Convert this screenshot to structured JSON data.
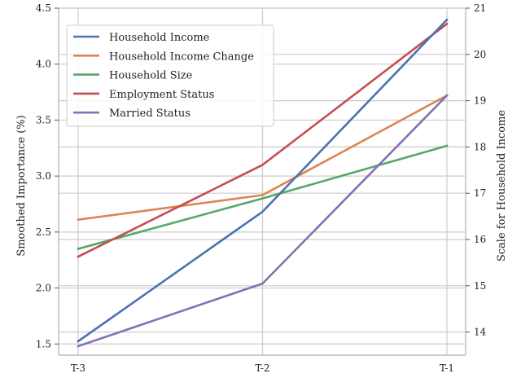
{
  "chart_data": {
    "type": "line",
    "categories": [
      "T-3",
      "T-2",
      "T-1"
    ],
    "series": [
      {
        "name": "Household Income Change",
        "axis": "left",
        "color": "#dd8452",
        "values": [
          2.61,
          2.83,
          3.72
        ]
      },
      {
        "name": "Household Size",
        "axis": "left",
        "color": "#55a868",
        "values": [
          2.35,
          2.8,
          3.27
        ]
      },
      {
        "name": "Employment Status",
        "axis": "left",
        "color": "#c44e52",
        "values": [
          2.28,
          3.1,
          4.36
        ]
      },
      {
        "name": "Married Status",
        "axis": "left",
        "color": "#8172b3",
        "values": [
          1.48,
          2.04,
          3.72
        ]
      },
      {
        "name": "Household Income",
        "axis": "right",
        "color": "#4c72b0",
        "values": [
          13.8,
          16.6,
          20.75
        ]
      }
    ],
    "legend_order": [
      "Household Income",
      "Household Income Change",
      "Household Size",
      "Employment Status",
      "Married Status"
    ],
    "ylabel": "Smoothed Importance (%)",
    "ylabel_right": "Scale for Household Income",
    "ylim": [
      1.4,
      4.5
    ],
    "ylim_right": [
      13.5,
      21.0
    ],
    "yticks": [
      1.5,
      2.0,
      2.5,
      3.0,
      3.5,
      4.0,
      4.5
    ],
    "yticks_labels": [
      "1.5",
      "2.0",
      "2.5",
      "3.0",
      "3.5",
      "4.0",
      "4.5"
    ],
    "yticks_right": [
      14,
      15,
      16,
      17,
      18,
      19,
      20,
      21
    ],
    "yticks_right_labels": [
      "14",
      "15",
      "16",
      "17",
      "18",
      "19",
      "20",
      "21"
    ],
    "grid": true,
    "legend_position": "top-left"
  }
}
